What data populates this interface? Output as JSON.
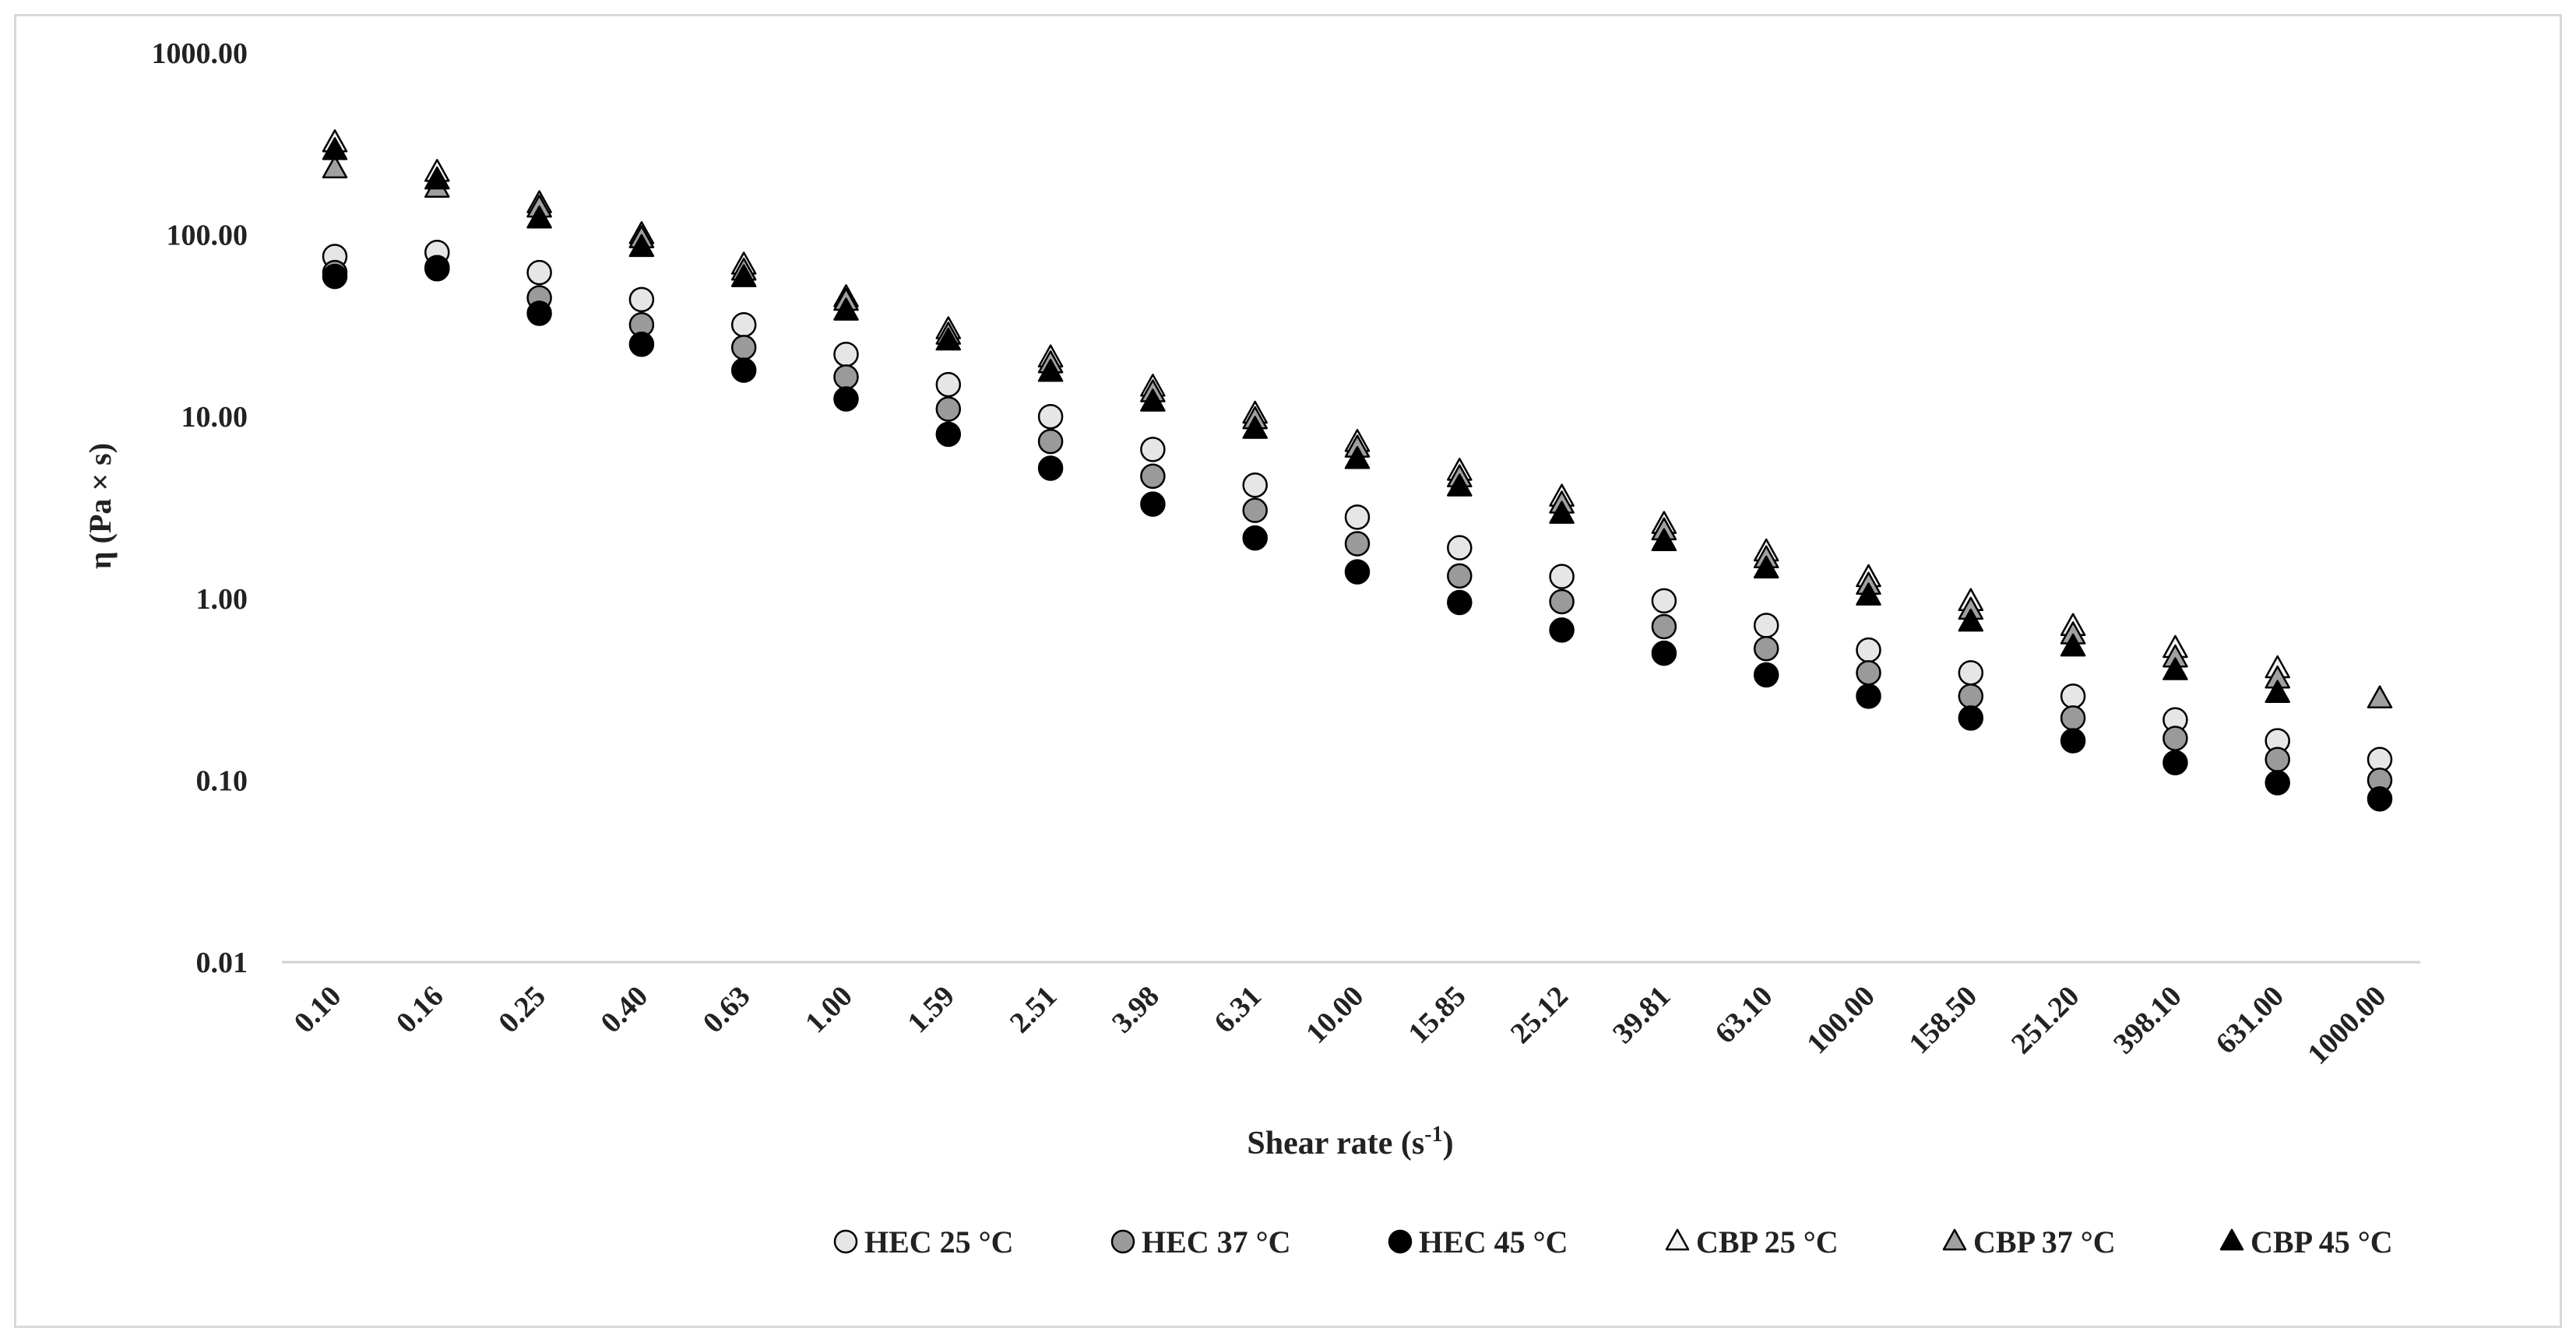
{
  "chart_data": {
    "type": "scatter",
    "title": "",
    "xlabel": "Shear rate (s",
    "xlabel_sup": "-1",
    "xlabel_end": ")",
    "ylabel": "η (Pa × s)",
    "y_scale": "log",
    "ylim": [
      0.01,
      1000
    ],
    "y_ticks": [
      "0.01",
      "0.10",
      "1.00",
      "10.00",
      "100.00",
      "1000.00"
    ],
    "categories": [
      "0.10",
      "0.16",
      "0.25",
      "0.40",
      "0.63",
      "1.00",
      "1.59",
      "2.51",
      "3.98",
      "6.31",
      "10.00",
      "15.85",
      "25.12",
      "39.81",
      "63.10",
      "100.00",
      "158.50",
      "251.20",
      "398.10",
      "631.00",
      "1000.00"
    ],
    "grid": false,
    "legend_position": "bottom",
    "series": [
      {
        "name": "HEC 25 °C",
        "marker": "circle",
        "fill": "#e6e6e6",
        "values": [
          76,
          80,
          62,
          44,
          32,
          22,
          15,
          10,
          6.6,
          4.2,
          2.8,
          1.9,
          1.32,
          0.97,
          0.71,
          0.52,
          0.39,
          0.29,
          0.215,
          0.165,
          0.13
        ]
      },
      {
        "name": "HEC 37 °C",
        "marker": "circle",
        "fill": "#9a9a9a",
        "values": [
          62,
          66,
          45,
          32,
          24,
          16.5,
          11,
          7.3,
          4.7,
          3.05,
          2.0,
          1.33,
          0.96,
          0.7,
          0.53,
          0.39,
          0.29,
          0.22,
          0.17,
          0.13,
          0.1
        ]
      },
      {
        "name": "HEC 45 °C",
        "marker": "circle",
        "fill": "#000000",
        "values": [
          59,
          65,
          37,
          25,
          18,
          12.5,
          8,
          5.2,
          3.3,
          2.15,
          1.4,
          0.95,
          0.67,
          0.5,
          0.38,
          0.29,
          0.22,
          0.165,
          0.125,
          0.097,
          0.079
        ]
      },
      {
        "name": "CBP 25 °C",
        "marker": "triangle",
        "fill": "#f2f2f2",
        "values": [
          320,
          220,
          148,
          100,
          68,
          45,
          30,
          21,
          14.5,
          10.3,
          7.2,
          5.0,
          3.6,
          2.55,
          1.8,
          1.3,
          0.96,
          0.7,
          0.53,
          0.41,
          null
        ]
      },
      {
        "name": "CBP 37 °C",
        "marker": "triangle",
        "fill": "#a0a0a0",
        "values": [
          230,
          180,
          140,
          95,
          63,
          43,
          28,
          19.5,
          13.5,
          9.6,
          6.7,
          4.6,
          3.3,
          2.35,
          1.65,
          1.18,
          0.86,
          0.63,
          0.47,
          0.36,
          0.28
        ]
      },
      {
        "name": "CBP 45 °C",
        "marker": "triangle",
        "fill": "#000000",
        "values": [
          290,
          200,
          122,
          85,
          58,
          38,
          26,
          17.5,
          12,
          8.5,
          5.8,
          4.1,
          2.9,
          2.05,
          1.45,
          1.03,
          0.74,
          0.54,
          0.4,
          0.3,
          null
        ]
      }
    ]
  }
}
